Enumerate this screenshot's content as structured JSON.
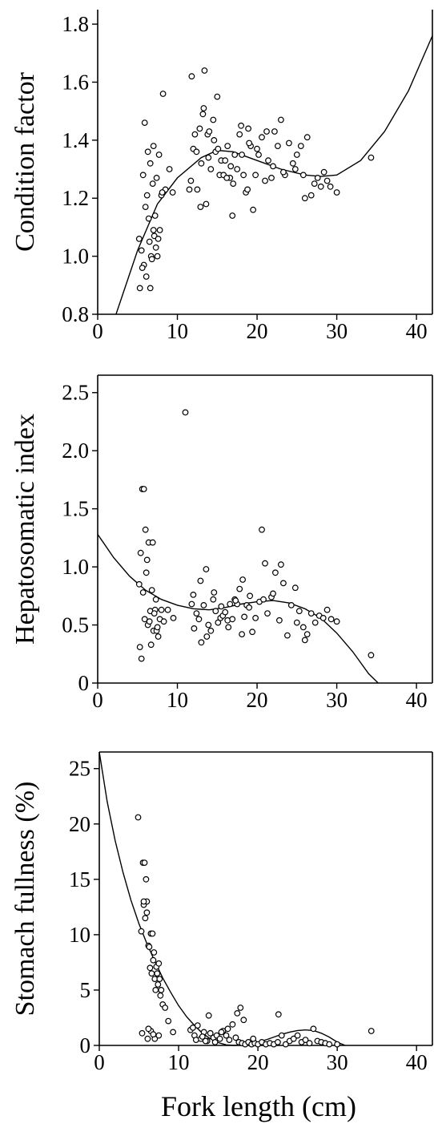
{
  "chart_data": [
    {
      "type": "scatter",
      "ylabel": "Condition factor",
      "xlim": [
        0,
        42
      ],
      "ylim": [
        0.8,
        1.85
      ],
      "xticks": [
        "0",
        "10",
        "20",
        "30",
        "40"
      ],
      "yticks": [
        {
          "value": 0.8,
          "label": "0.8"
        },
        {
          "value": 1.0,
          "label": "1.0"
        },
        {
          "value": 1.2,
          "label": "1.2"
        },
        {
          "value": 1.4,
          "label": "1.4"
        },
        {
          "value": 1.6,
          "label": "1.6"
        },
        {
          "value": 1.8,
          "label": "1.8"
        }
      ],
      "fit_curve": {
        "x": [
          2.3,
          5,
          7.5,
          10,
          13,
          15,
          17,
          20,
          23,
          26,
          28,
          30,
          33,
          36,
          39,
          42
        ],
        "y": [
          0.8,
          1.02,
          1.18,
          1.27,
          1.34,
          1.365,
          1.36,
          1.33,
          1.3,
          1.28,
          1.275,
          1.28,
          1.33,
          1.43,
          1.57,
          1.76
        ]
      },
      "points": {
        "x": [
          5.2,
          5.5,
          5.8,
          6.0,
          6.2,
          6.4,
          6.5,
          6.7,
          6.9,
          7.0,
          7.1,
          7.3,
          7.5,
          7.6,
          7.8,
          5.3,
          5.6,
          6.1,
          6.6,
          6.8,
          7.2,
          7.4,
          8.0,
          5.9,
          6.3,
          7.7,
          8.2,
          8.5,
          9.0,
          9.4,
          5.7,
          6.6,
          7.0,
          8.1,
          11.5,
          11.8,
          12.0,
          12.2,
          12.5,
          12.8,
          13.0,
          13.2,
          13.4,
          13.6,
          13.8,
          14.0,
          14.2,
          14.5,
          14.8,
          15.0,
          15.3,
          15.5,
          15.8,
          16.0,
          16.3,
          16.6,
          16.9,
          17.2,
          17.5,
          17.8,
          18.0,
          18.3,
          18.6,
          18.9,
          19.2,
          19.5,
          19.8,
          20.2,
          20.6,
          21.0,
          21.4,
          21.8,
          22.2,
          22.6,
          23.0,
          23.5,
          24.0,
          24.5,
          25.0,
          25.5,
          26.0,
          26.3,
          26.8,
          27.2,
          27.6,
          28.0,
          28.4,
          28.8,
          29.2,
          30.0,
          34.3,
          11.7,
          12.4,
          13.3,
          13.9,
          15.1,
          16.2,
          17.0,
          18.1,
          19.0,
          20.0,
          22.0,
          24.8,
          12.9,
          14.6,
          16.7,
          18.8,
          21.2,
          23.3,
          25.8
        ],
        "y": [
          1.06,
          1.02,
          0.97,
          1.17,
          1.21,
          1.13,
          1.05,
          1.0,
          1.25,
          1.09,
          1.07,
          1.03,
          1.0,
          1.06,
          1.09,
          0.89,
          0.96,
          0.93,
          0.89,
          0.99,
          1.14,
          1.27,
          1.21,
          1.46,
          1.36,
          1.35,
          1.56,
          1.23,
          1.3,
          1.22,
          1.28,
          1.32,
          1.38,
          1.22,
          1.23,
          1.62,
          1.37,
          1.42,
          1.23,
          1.44,
          1.32,
          1.49,
          1.64,
          1.18,
          1.42,
          1.43,
          1.3,
          1.47,
          1.36,
          1.55,
          1.28,
          1.33,
          1.28,
          1.33,
          1.38,
          1.27,
          1.14,
          1.35,
          1.3,
          1.42,
          1.45,
          1.28,
          1.22,
          1.44,
          1.38,
          1.16,
          1.28,
          1.35,
          1.41,
          1.26,
          1.33,
          1.27,
          1.43,
          1.38,
          1.47,
          1.28,
          1.39,
          1.32,
          1.35,
          1.38,
          1.2,
          1.41,
          1.21,
          1.25,
          1.27,
          1.24,
          1.29,
          1.26,
          1.24,
          1.22,
          1.34,
          1.26,
          1.36,
          1.51,
          1.34,
          1.37,
          1.27,
          1.25,
          1.35,
          1.39,
          1.37,
          1.31,
          1.3,
          1.17,
          1.4,
          1.31,
          1.23,
          1.43,
          1.29,
          1.28
        ]
      }
    },
    {
      "type": "scatter",
      "ylabel": "Hepatosomatic index",
      "xlim": [
        0,
        42
      ],
      "ylim": [
        0,
        2.65
      ],
      "xticks": [
        "0",
        "10",
        "20",
        "30",
        "40"
      ],
      "yticks": [
        {
          "value": 0,
          "label": "0"
        },
        {
          "value": 0.5,
          "label": "0.5"
        },
        {
          "value": 1.0,
          "label": "1.0"
        },
        {
          "value": 1.5,
          "label": "1.5"
        },
        {
          "value": 2.0,
          "label": "2.0"
        },
        {
          "value": 2.5,
          "label": "2.5"
        }
      ],
      "fit_curve": {
        "x": [
          0,
          2,
          4,
          6,
          8,
          10,
          12,
          14,
          16,
          18,
          20,
          22,
          24,
          26,
          28,
          30,
          32,
          34,
          35.2
        ],
        "y": [
          1.28,
          1.08,
          0.92,
          0.8,
          0.72,
          0.67,
          0.64,
          0.63,
          0.65,
          0.68,
          0.7,
          0.71,
          0.69,
          0.64,
          0.56,
          0.43,
          0.27,
          0.08,
          0.0
        ]
      },
      "points": {
        "x": [
          5.2,
          5.4,
          5.6,
          5.8,
          6.0,
          6.2,
          6.4,
          6.6,
          6.8,
          7.0,
          7.2,
          7.4,
          7.6,
          7.8,
          8.0,
          5.5,
          5.9,
          6.3,
          6.7,
          7.1,
          7.5,
          5.3,
          6.1,
          6.9,
          7.3,
          5.7,
          6.5,
          8.3,
          8.8,
          9.5,
          11.0,
          11.8,
          12.1,
          12.4,
          12.7,
          13.0,
          13.3,
          13.6,
          13.9,
          14.2,
          14.5,
          14.8,
          15.1,
          15.4,
          15.7,
          16.0,
          16.3,
          16.6,
          16.9,
          17.2,
          17.5,
          17.8,
          18.1,
          18.4,
          18.7,
          19.0,
          19.4,
          19.8,
          20.3,
          20.8,
          21.3,
          21.8,
          22.3,
          22.8,
          23.3,
          23.8,
          24.3,
          24.8,
          25.3,
          25.8,
          26.3,
          26.8,
          27.3,
          27.8,
          28.3,
          28.8,
          29.3,
          30.0,
          34.3,
          12.0,
          12.9,
          13.7,
          14.6,
          15.5,
          16.4,
          17.3,
          18.2,
          19.1,
          20.6,
          21.0,
          22.0,
          23.0,
          25.0,
          26.0
        ],
        "y": [
          0.85,
          1.12,
          1.67,
          1.67,
          1.32,
          1.06,
          1.21,
          0.62,
          0.8,
          0.45,
          0.63,
          0.45,
          0.4,
          0.55,
          0.63,
          0.21,
          0.55,
          0.5,
          0.33,
          0.6,
          0.48,
          0.31,
          0.95,
          1.21,
          0.72,
          0.78,
          0.53,
          0.53,
          0.63,
          0.56,
          2.33,
          0.68,
          0.47,
          0.6,
          0.55,
          0.35,
          0.67,
          0.98,
          0.5,
          0.45,
          0.72,
          0.62,
          0.52,
          0.56,
          0.58,
          0.61,
          0.54,
          0.68,
          0.55,
          0.72,
          0.68,
          0.81,
          0.42,
          0.57,
          0.67,
          0.65,
          0.44,
          0.56,
          0.7,
          0.72,
          0.6,
          0.74,
          0.95,
          0.54,
          0.86,
          0.41,
          0.67,
          0.82,
          0.62,
          0.48,
          0.42,
          0.6,
          0.52,
          0.58,
          0.56,
          0.63,
          0.55,
          0.53,
          0.24,
          0.76,
          0.88,
          0.4,
          0.78,
          0.66,
          0.48,
          0.71,
          0.89,
          0.75,
          1.32,
          1.03,
          0.77,
          1.02,
          0.52,
          0.37
        ]
      }
    },
    {
      "type": "scatter",
      "ylabel": "Stomach fullness  (%)",
      "xlabel": "Fork length (cm)",
      "xlim": [
        0,
        42
      ],
      "ylim": [
        0,
        26.5
      ],
      "xticks": [
        "0",
        "10",
        "20",
        "30",
        "40"
      ],
      "yticks": [
        {
          "value": 0,
          "label": "0"
        },
        {
          "value": 5,
          "label": "5"
        },
        {
          "value": 10,
          "label": "10"
        },
        {
          "value": 15,
          "label": "15"
        },
        {
          "value": 20,
          "label": "20"
        },
        {
          "value": 25,
          "label": "25"
        }
      ],
      "fit_curve": {
        "x": [
          0,
          1,
          2,
          3,
          4,
          5,
          6,
          7,
          8,
          9,
          10,
          11,
          12,
          13,
          14,
          15,
          16,
          17,
          18,
          19,
          20,
          21,
          22,
          23,
          24,
          25,
          26,
          27,
          28,
          29,
          30,
          31
        ],
        "y": [
          26.5,
          22.0,
          18.5,
          15.6,
          13.1,
          11.0,
          9.2,
          7.6,
          6.1,
          4.8,
          3.6,
          2.6,
          1.8,
          1.1,
          0.6,
          0.25,
          0.05,
          0.0,
          0.05,
          0.15,
          0.3,
          0.5,
          0.75,
          1.0,
          1.2,
          1.35,
          1.4,
          1.35,
          1.1,
          0.75,
          0.3,
          0.0
        ]
      },
      "points": {
        "x": [
          4.9,
          5.3,
          5.5,
          5.6,
          5.8,
          5.9,
          6.0,
          6.1,
          6.2,
          6.3,
          6.4,
          6.5,
          6.6,
          6.7,
          6.8,
          6.9,
          7.0,
          7.1,
          7.2,
          7.3,
          7.4,
          7.5,
          7.6,
          7.7,
          7.8,
          8.0,
          8.3,
          8.7,
          9.3,
          5.7,
          6.0,
          6.5,
          7.0,
          7.5,
          5.4,
          6.2,
          6.8,
          5.6,
          11.5,
          12.0,
          12.4,
          12.8,
          13.2,
          13.6,
          14.0,
          14.4,
          14.8,
          15.2,
          15.6,
          16.0,
          16.4,
          16.8,
          17.2,
          17.6,
          18.0,
          18.4,
          18.8,
          19.2,
          19.6,
          20.0,
          20.5,
          21.0,
          21.5,
          22.0,
          22.5,
          23.0,
          23.5,
          24.0,
          24.5,
          25.0,
          25.5,
          26.0,
          26.5,
          27.0,
          27.5,
          28.0,
          28.5,
          29.0,
          30.0,
          34.3,
          12.2,
          13.0,
          13.8,
          14.6,
          15.4,
          16.2,
          17.8,
          18.2,
          22.6,
          11.8,
          13.4,
          17.4,
          19.4
        ],
        "y": [
          20.6,
          10.3,
          16.5,
          12.7,
          11.5,
          15.0,
          13.0,
          0.6,
          9.0,
          8.9,
          7.0,
          10.1,
          6.5,
          10.1,
          7.7,
          8.4,
          6.0,
          5.0,
          7.1,
          6.5,
          5.5,
          7.4,
          6.0,
          4.5,
          5.0,
          3.7,
          3.4,
          2.2,
          1.2,
          16.5,
          12.0,
          1.3,
          0.6,
          0.9,
          1.1,
          1.5,
          1.0,
          13.0,
          1.4,
          0.9,
          1.8,
          0.6,
          1.2,
          0.4,
          1.1,
          0.7,
          0.9,
          0.6,
          1.3,
          0.9,
          0.5,
          1.9,
          0.7,
          0.3,
          0.2,
          0.1,
          0.3,
          0.1,
          0.2,
          0.1,
          0.3,
          0.1,
          0.2,
          0.1,
          0.3,
          0.9,
          0.1,
          0.4,
          0.6,
          0.9,
          0.3,
          0.5,
          0.2,
          1.5,
          0.4,
          0.3,
          0.2,
          0.1,
          0.1,
          1.3,
          0.5,
          0.8,
          2.7,
          0.3,
          1.2,
          1.5,
          3.4,
          2.3,
          2.8,
          1.6,
          0.4,
          2.9,
          0.6
        ]
      }
    }
  ]
}
